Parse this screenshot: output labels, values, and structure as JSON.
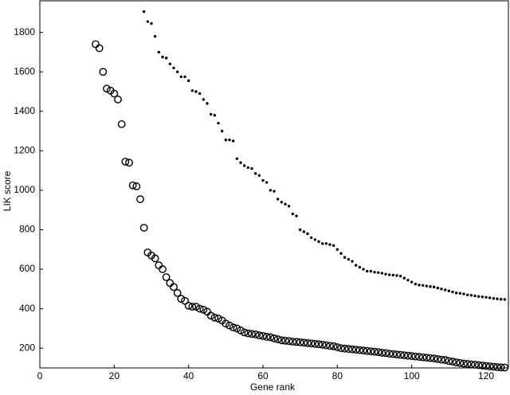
{
  "chart_data": {
    "type": "scatter",
    "xlabel": "Gene rank",
    "ylabel": "LIK score",
    "xlim": [
      0,
      126
    ],
    "ylim": [
      100,
      1960
    ],
    "xticks": [
      0,
      20,
      40,
      60,
      80,
      100,
      120
    ],
    "yticks": [
      200,
      400,
      600,
      800,
      1000,
      1200,
      1400,
      1600,
      1800
    ],
    "series": [
      {
        "color": "#000000",
        "marker": "open-circle",
        "x": [
          15,
          16,
          17,
          18,
          19,
          20,
          21,
          22,
          23,
          24,
          25,
          26,
          27,
          28,
          29,
          30,
          31,
          32,
          33,
          34,
          35,
          36,
          37,
          38,
          39,
          40,
          41,
          42,
          43,
          44,
          45,
          46,
          47,
          48,
          49,
          50,
          51,
          52,
          53,
          54,
          55,
          56,
          57,
          58,
          59,
          60,
          61,
          62,
          63,
          64,
          65,
          66,
          67,
          68,
          69,
          70,
          71,
          72,
          73,
          74,
          75,
          76,
          77,
          78,
          79,
          80,
          81,
          82,
          83,
          84,
          85,
          86,
          87,
          88,
          89,
          90,
          91,
          92,
          93,
          94,
          95,
          96,
          97,
          98,
          99,
          100,
          101,
          102,
          103,
          104,
          105,
          106,
          107,
          108,
          109,
          110,
          111,
          112,
          113,
          114,
          115,
          116,
          117,
          118,
          119,
          120,
          121,
          122,
          123,
          124,
          125
        ],
        "values": [
          1740,
          1720,
          1600,
          1515,
          1505,
          1490,
          1460,
          1335,
          1145,
          1140,
          1025,
          1020,
          955,
          810,
          685,
          670,
          655,
          620,
          600,
          560,
          530,
          510,
          480,
          450,
          440,
          415,
          410,
          410,
          400,
          395,
          385,
          365,
          355,
          350,
          340,
          325,
          315,
          305,
          300,
          290,
          280,
          275,
          272,
          270,
          265,
          262,
          258,
          255,
          250,
          245,
          240,
          238,
          236,
          233,
          232,
          230,
          228,
          226,
          224,
          222,
          220,
          218,
          215,
          212,
          210,
          205,
          200,
          198,
          196,
          194,
          192,
          190,
          188,
          186,
          184,
          182,
          180,
          177,
          175,
          172,
          170,
          168,
          166,
          164,
          162,
          160,
          158,
          156,
          154,
          152,
          150,
          148,
          145,
          142,
          140,
          135,
          132,
          128,
          125,
          122,
          120,
          118,
          116,
          114,
          112,
          110,
          108,
          106,
          104,
          103,
          102
        ]
      },
      {
        "color": "#000000",
        "marker": "dot",
        "x": [
          28,
          29,
          30,
          31,
          32,
          33,
          34,
          35,
          36,
          37,
          38,
          39,
          40,
          41,
          42,
          43,
          44,
          45,
          46,
          47,
          48,
          49,
          50,
          51,
          52,
          53,
          54,
          55,
          56,
          57,
          58,
          59,
          60,
          61,
          62,
          63,
          64,
          65,
          66,
          67,
          68,
          69,
          70,
          71,
          72,
          73,
          74,
          75,
          76,
          77,
          78,
          79,
          80,
          81,
          82,
          83,
          84,
          85,
          86,
          87,
          88,
          89,
          90,
          91,
          92,
          93,
          94,
          95,
          96,
          97,
          98,
          99,
          100,
          101,
          102,
          103,
          104,
          105,
          106,
          107,
          108,
          109,
          110,
          111,
          112,
          113,
          114,
          115,
          116,
          117,
          118,
          119,
          120,
          121,
          122,
          123,
          124,
          125
        ],
        "values": [
          1905,
          1855,
          1845,
          1780,
          1700,
          1675,
          1670,
          1640,
          1620,
          1600,
          1575,
          1575,
          1555,
          1505,
          1500,
          1490,
          1460,
          1440,
          1385,
          1380,
          1340,
          1300,
          1255,
          1255,
          1250,
          1160,
          1140,
          1125,
          1115,
          1110,
          1085,
          1075,
          1050,
          1040,
          1000,
          995,
          955,
          940,
          930,
          920,
          880,
          870,
          800,
          790,
          780,
          760,
          750,
          740,
          730,
          730,
          725,
          720,
          700,
          680,
          660,
          650,
          640,
          620,
          610,
          600,
          590,
          590,
          585,
          583,
          580,
          575,
          572,
          570,
          568,
          565,
          555,
          545,
          535,
          525,
          520,
          518,
          515,
          512,
          510,
          505,
          500,
          495,
          490,
          485,
          480,
          478,
          475,
          470,
          468,
          465,
          462,
          460,
          458,
          455,
          452,
          450,
          448,
          447
        ]
      }
    ]
  }
}
